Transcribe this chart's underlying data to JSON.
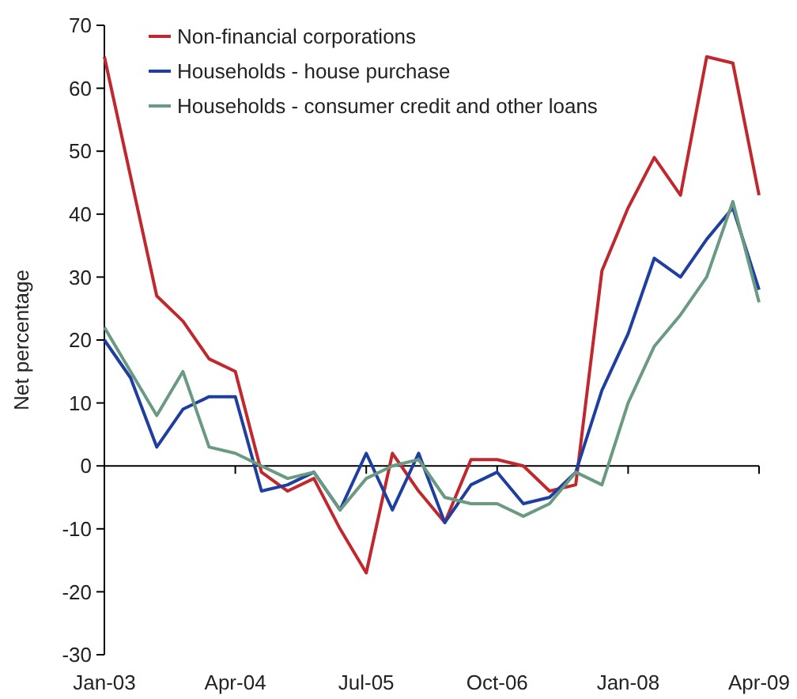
{
  "chart_data": {
    "type": "line",
    "ylabel": "Net percentage",
    "categories": [
      "Jan-03",
      null,
      null,
      null,
      null,
      "Apr-04",
      null,
      null,
      null,
      null,
      "Jul-05",
      null,
      null,
      null,
      null,
      "Oct-06",
      null,
      null,
      null,
      null,
      "Jan-08",
      null,
      null,
      null,
      null,
      "Apr-09"
    ],
    "series": [
      {
        "name": "Non-financial corporations",
        "color": "#c0282d",
        "values": [
          65,
          46,
          27,
          23,
          17,
          15,
          -1,
          -4,
          -2,
          -10,
          -17,
          2,
          -4,
          -9,
          1,
          1,
          0,
          -4,
          -3,
          31,
          41,
          49,
          43,
          65,
          64,
          43
        ]
      },
      {
        "name": "Households - house purchase",
        "color": "#1f3fa0",
        "values": [
          20,
          14,
          3,
          9,
          11,
          11,
          -4,
          -3,
          -1,
          -7,
          2,
          -7,
          2,
          -9,
          -3,
          -1,
          -6,
          -5,
          -1,
          12,
          21,
          33,
          30,
          36,
          41,
          28
        ]
      },
      {
        "name": "Households - consumer credit and other loans",
        "color": "#6a9a82",
        "values": [
          22,
          15,
          8,
          15,
          3,
          2,
          0,
          -2,
          -1,
          -7,
          -2,
          0,
          1,
          -5,
          -6,
          -6,
          -8,
          -6,
          -1,
          -3,
          10,
          19,
          24,
          30,
          42,
          26
        ]
      }
    ],
    "ylim": [
      -30,
      70
    ],
    "yticks": [
      -30,
      -20,
      -10,
      0,
      10,
      20,
      30,
      40,
      50,
      60,
      70
    ],
    "legend": "top left"
  }
}
